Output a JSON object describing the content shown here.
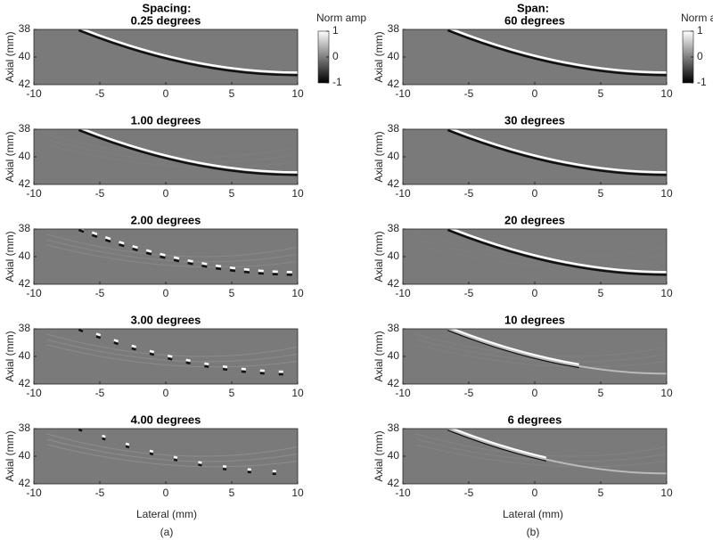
{
  "figure": {
    "columns": [
      {
        "title": "Spacing:",
        "xlabel": "Lateral (mm)",
        "caption": "(a)"
      },
      {
        "title": "Span:",
        "xlabel": "Lateral (mm)",
        "caption": "(b)"
      }
    ]
  },
  "chart_data": [
    {
      "type": "image",
      "title": "0.25 degrees",
      "ylabel": "Axial (mm)",
      "xlim": [
        -10,
        10
      ],
      "xticks": [
        -10,
        -5,
        0,
        5,
        10
      ],
      "ylim": [
        38,
        42
      ],
      "yticks": [
        38,
        40,
        42
      ],
      "y_reversed": true
    },
    {
      "type": "image",
      "title": "1.00 degrees",
      "ylabel": "Axial (mm)",
      "xlim": [
        -10,
        10
      ],
      "xticks": [
        -10,
        -5,
        0,
        5,
        10
      ],
      "ylim": [
        38,
        42
      ],
      "yticks": [
        38,
        40,
        42
      ],
      "y_reversed": true
    },
    {
      "type": "image",
      "title": "2.00 degrees",
      "ylabel": "Axial (mm)",
      "xlim": [
        -10,
        10
      ],
      "xticks": [
        -10,
        -5,
        0,
        5,
        10
      ],
      "ylim": [
        38,
        42
      ],
      "yticks": [
        38,
        40,
        42
      ],
      "y_reversed": true
    },
    {
      "type": "image",
      "title": "3.00 degrees",
      "ylabel": "Axial (mm)",
      "xlim": [
        -10,
        10
      ],
      "xticks": [
        -10,
        -5,
        0,
        5,
        10
      ],
      "ylim": [
        38,
        42
      ],
      "yticks": [
        38,
        40,
        42
      ],
      "y_reversed": true
    },
    {
      "type": "image",
      "title": "4.00 degrees",
      "ylabel": "Axial (mm)",
      "xlim": [
        -10,
        10
      ],
      "xticks": [
        -10,
        -5,
        0,
        5,
        10
      ],
      "ylim": [
        38,
        42
      ],
      "yticks": [
        38,
        40,
        42
      ],
      "y_reversed": true
    },
    {
      "type": "image",
      "title": "60 degrees",
      "ylabel": "Axial (mm)",
      "xlim": [
        -10,
        10
      ],
      "xticks": [
        -10,
        -5,
        0,
        5,
        10
      ],
      "ylim": [
        38,
        42
      ],
      "yticks": [
        38,
        40,
        42
      ],
      "y_reversed": true
    },
    {
      "type": "image",
      "title": "30 degrees",
      "ylabel": "Axial (mm)",
      "xlim": [
        -10,
        10
      ],
      "xticks": [
        -10,
        -5,
        0,
        5,
        10
      ],
      "ylim": [
        38,
        42
      ],
      "yticks": [
        38,
        40,
        42
      ],
      "y_reversed": true
    },
    {
      "type": "image",
      "title": "20 degrees",
      "ylabel": "Axial (mm)",
      "xlim": [
        -10,
        10
      ],
      "xticks": [
        -10,
        -5,
        0,
        5,
        10
      ],
      "ylim": [
        38,
        42
      ],
      "yticks": [
        38,
        40,
        42
      ],
      "y_reversed": true
    },
    {
      "type": "image",
      "title": "10 degrees",
      "ylabel": "Axial (mm)",
      "xlim": [
        -10,
        10
      ],
      "xticks": [
        -10,
        -5,
        0,
        5,
        10
      ],
      "ylim": [
        38,
        42
      ],
      "yticks": [
        38,
        40,
        42
      ],
      "y_reversed": true
    },
    {
      "type": "image",
      "title": "6 degrees",
      "ylabel": "Axial (mm)",
      "xlim": [
        -10,
        10
      ],
      "xticks": [
        -10,
        -5,
        0,
        5,
        10
      ],
      "ylim": [
        38,
        42
      ],
      "yticks": [
        38,
        40,
        42
      ],
      "y_reversed": true
    },
    {
      "type": "colorbar",
      "label": "Norm amp",
      "ylim": [
        -1,
        1
      ],
      "yticks": [
        -1,
        0,
        1
      ]
    },
    {
      "type": "colorbar",
      "label": "Norm amp",
      "ylim": [
        -1,
        1
      ],
      "yticks": [
        -1,
        0,
        1
      ]
    }
  ]
}
